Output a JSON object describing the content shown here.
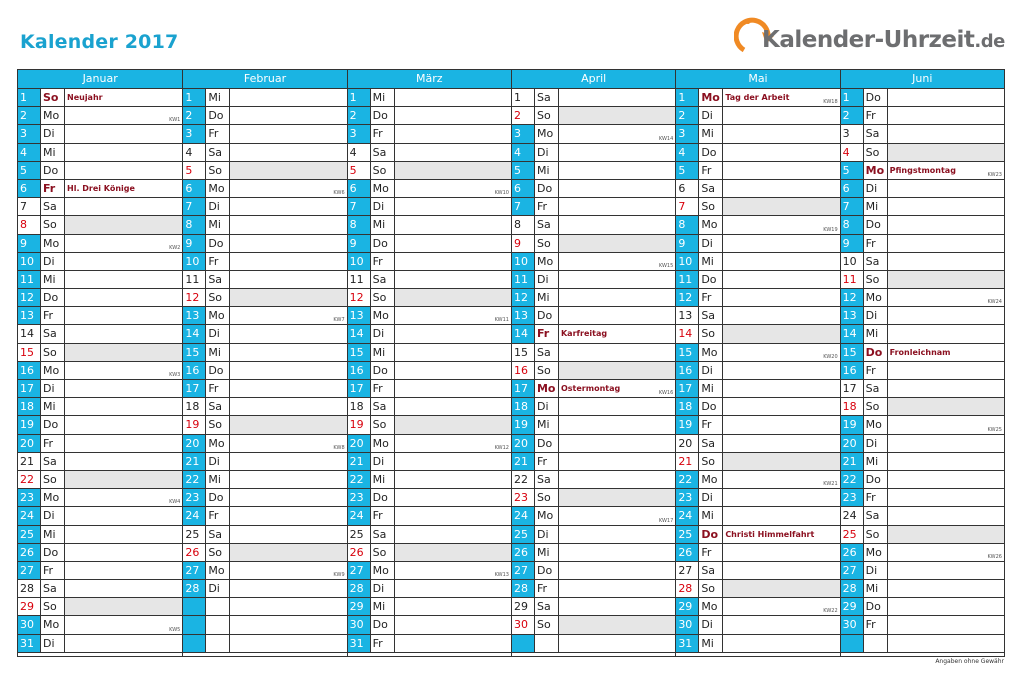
{
  "title": "Kalender 2017",
  "logo": {
    "text": "Kalender-Uhrzeit",
    "suffix": ".de",
    "icon": "clock-arrow-icon"
  },
  "footer": "Angaben ohne Gewähr",
  "colors": {
    "accent": "#1ab4e3",
    "holiday": "#8b1020",
    "sunday": "#d8000c",
    "weekend_bg": "#e6e6e6"
  },
  "months": [
    {
      "name": "Januar",
      "days": [
        {
          "n": "1",
          "d": "So",
          "h": "Neujahr",
          "kw": ""
        },
        {
          "n": "2",
          "d": "Mo",
          "kw": "KW1"
        },
        {
          "n": "3",
          "d": "Di"
        },
        {
          "n": "4",
          "d": "Mi"
        },
        {
          "n": "5",
          "d": "Do"
        },
        {
          "n": "6",
          "d": "Fr",
          "h": "Hl. Drei Könige"
        },
        {
          "n": "7",
          "d": "Sa"
        },
        {
          "n": "8",
          "d": "So"
        },
        {
          "n": "9",
          "d": "Mo",
          "kw": "KW2"
        },
        {
          "n": "10",
          "d": "Di"
        },
        {
          "n": "11",
          "d": "Mi"
        },
        {
          "n": "12",
          "d": "Do"
        },
        {
          "n": "13",
          "d": "Fr"
        },
        {
          "n": "14",
          "d": "Sa"
        },
        {
          "n": "15",
          "d": "So"
        },
        {
          "n": "16",
          "d": "Mo",
          "kw": "KW3"
        },
        {
          "n": "17",
          "d": "Di"
        },
        {
          "n": "18",
          "d": "Mi"
        },
        {
          "n": "19",
          "d": "Do"
        },
        {
          "n": "20",
          "d": "Fr"
        },
        {
          "n": "21",
          "d": "Sa"
        },
        {
          "n": "22",
          "d": "So"
        },
        {
          "n": "23",
          "d": "Mo",
          "kw": "KW4"
        },
        {
          "n": "24",
          "d": "Di"
        },
        {
          "n": "25",
          "d": "Mi"
        },
        {
          "n": "26",
          "d": "Do"
        },
        {
          "n": "27",
          "d": "Fr"
        },
        {
          "n": "28",
          "d": "Sa"
        },
        {
          "n": "29",
          "d": "So"
        },
        {
          "n": "30",
          "d": "Mo",
          "kw": "KW5"
        },
        {
          "n": "31",
          "d": "Di"
        }
      ]
    },
    {
      "name": "Februar",
      "days": [
        {
          "n": "1",
          "d": "Mi"
        },
        {
          "n": "2",
          "d": "Do"
        },
        {
          "n": "3",
          "d": "Fr"
        },
        {
          "n": "4",
          "d": "Sa"
        },
        {
          "n": "5",
          "d": "So"
        },
        {
          "n": "6",
          "d": "Mo",
          "kw": "KW6"
        },
        {
          "n": "7",
          "d": "Di"
        },
        {
          "n": "8",
          "d": "Mi"
        },
        {
          "n": "9",
          "d": "Do"
        },
        {
          "n": "10",
          "d": "Fr"
        },
        {
          "n": "11",
          "d": "Sa"
        },
        {
          "n": "12",
          "d": "So"
        },
        {
          "n": "13",
          "d": "Mo",
          "kw": "KW7"
        },
        {
          "n": "14",
          "d": "Di"
        },
        {
          "n": "15",
          "d": "Mi"
        },
        {
          "n": "16",
          "d": "Do"
        },
        {
          "n": "17",
          "d": "Fr"
        },
        {
          "n": "18",
          "d": "Sa"
        },
        {
          "n": "19",
          "d": "So"
        },
        {
          "n": "20",
          "d": "Mo",
          "kw": "KW8"
        },
        {
          "n": "21",
          "d": "Di"
        },
        {
          "n": "22",
          "d": "Mi"
        },
        {
          "n": "23",
          "d": "Do"
        },
        {
          "n": "24",
          "d": "Fr"
        },
        {
          "n": "25",
          "d": "Sa"
        },
        {
          "n": "26",
          "d": "So"
        },
        {
          "n": "27",
          "d": "Mo",
          "kw": "KW9"
        },
        {
          "n": "28",
          "d": "Di"
        }
      ]
    },
    {
      "name": "März",
      "days": [
        {
          "n": "1",
          "d": "Mi"
        },
        {
          "n": "2",
          "d": "Do"
        },
        {
          "n": "3",
          "d": "Fr"
        },
        {
          "n": "4",
          "d": "Sa"
        },
        {
          "n": "5",
          "d": "So"
        },
        {
          "n": "6",
          "d": "Mo",
          "kw": "KW10"
        },
        {
          "n": "7",
          "d": "Di"
        },
        {
          "n": "8",
          "d": "Mi"
        },
        {
          "n": "9",
          "d": "Do"
        },
        {
          "n": "10",
          "d": "Fr"
        },
        {
          "n": "11",
          "d": "Sa"
        },
        {
          "n": "12",
          "d": "So"
        },
        {
          "n": "13",
          "d": "Mo",
          "kw": "KW11"
        },
        {
          "n": "14",
          "d": "Di"
        },
        {
          "n": "15",
          "d": "Mi"
        },
        {
          "n": "16",
          "d": "Do"
        },
        {
          "n": "17",
          "d": "Fr"
        },
        {
          "n": "18",
          "d": "Sa"
        },
        {
          "n": "19",
          "d": "So"
        },
        {
          "n": "20",
          "d": "Mo",
          "kw": "KW12"
        },
        {
          "n": "21",
          "d": "Di"
        },
        {
          "n": "22",
          "d": "Mi"
        },
        {
          "n": "23",
          "d": "Do"
        },
        {
          "n": "24",
          "d": "Fr"
        },
        {
          "n": "25",
          "d": "Sa"
        },
        {
          "n": "26",
          "d": "So"
        },
        {
          "n": "27",
          "d": "Mo",
          "kw": "KW13"
        },
        {
          "n": "28",
          "d": "Di"
        },
        {
          "n": "29",
          "d": "Mi"
        },
        {
          "n": "30",
          "d": "Do"
        },
        {
          "n": "31",
          "d": "Fr"
        }
      ]
    },
    {
      "name": "April",
      "days": [
        {
          "n": "1",
          "d": "Sa"
        },
        {
          "n": "2",
          "d": "So"
        },
        {
          "n": "3",
          "d": "Mo",
          "kw": "KW14"
        },
        {
          "n": "4",
          "d": "Di"
        },
        {
          "n": "5",
          "d": "Mi"
        },
        {
          "n": "6",
          "d": "Do"
        },
        {
          "n": "7",
          "d": "Fr"
        },
        {
          "n": "8",
          "d": "Sa"
        },
        {
          "n": "9",
          "d": "So"
        },
        {
          "n": "10",
          "d": "Mo",
          "kw": "KW15"
        },
        {
          "n": "11",
          "d": "Di"
        },
        {
          "n": "12",
          "d": "Mi"
        },
        {
          "n": "13",
          "d": "Do"
        },
        {
          "n": "14",
          "d": "Fr",
          "h": "Karfreitag"
        },
        {
          "n": "15",
          "d": "Sa"
        },
        {
          "n": "16",
          "d": "So"
        },
        {
          "n": "17",
          "d": "Mo",
          "h": "Ostermontag",
          "kw": "KW16"
        },
        {
          "n": "18",
          "d": "Di"
        },
        {
          "n": "19",
          "d": "Mi"
        },
        {
          "n": "20",
          "d": "Do"
        },
        {
          "n": "21",
          "d": "Fr"
        },
        {
          "n": "22",
          "d": "Sa"
        },
        {
          "n": "23",
          "d": "So"
        },
        {
          "n": "24",
          "d": "Mo",
          "kw": "KW17"
        },
        {
          "n": "25",
          "d": "Di"
        },
        {
          "n": "26",
          "d": "Mi"
        },
        {
          "n": "27",
          "d": "Do"
        },
        {
          "n": "28",
          "d": "Fr"
        },
        {
          "n": "29",
          "d": "Sa"
        },
        {
          "n": "30",
          "d": "So"
        }
      ]
    },
    {
      "name": "Mai",
      "days": [
        {
          "n": "1",
          "d": "Mo",
          "h": "Tag der Arbeit",
          "kw": "KW18"
        },
        {
          "n": "2",
          "d": "Di"
        },
        {
          "n": "3",
          "d": "Mi"
        },
        {
          "n": "4",
          "d": "Do"
        },
        {
          "n": "5",
          "d": "Fr"
        },
        {
          "n": "6",
          "d": "Sa"
        },
        {
          "n": "7",
          "d": "So"
        },
        {
          "n": "8",
          "d": "Mo",
          "kw": "KW19"
        },
        {
          "n": "9",
          "d": "Di"
        },
        {
          "n": "10",
          "d": "Mi"
        },
        {
          "n": "11",
          "d": "Do"
        },
        {
          "n": "12",
          "d": "Fr"
        },
        {
          "n": "13",
          "d": "Sa"
        },
        {
          "n": "14",
          "d": "So"
        },
        {
          "n": "15",
          "d": "Mo",
          "kw": "KW20"
        },
        {
          "n": "16",
          "d": "Di"
        },
        {
          "n": "17",
          "d": "Mi"
        },
        {
          "n": "18",
          "d": "Do"
        },
        {
          "n": "19",
          "d": "Fr"
        },
        {
          "n": "20",
          "d": "Sa"
        },
        {
          "n": "21",
          "d": "So"
        },
        {
          "n": "22",
          "d": "Mo",
          "kw": "KW21"
        },
        {
          "n": "23",
          "d": "Di"
        },
        {
          "n": "24",
          "d": "Mi"
        },
        {
          "n": "25",
          "d": "Do",
          "h": "Christi Himmelfahrt"
        },
        {
          "n": "26",
          "d": "Fr"
        },
        {
          "n": "27",
          "d": "Sa"
        },
        {
          "n": "28",
          "d": "So"
        },
        {
          "n": "29",
          "d": "Mo",
          "kw": "KW22"
        },
        {
          "n": "30",
          "d": "Di"
        },
        {
          "n": "31",
          "d": "Mi"
        }
      ]
    },
    {
      "name": "Juni",
      "days": [
        {
          "n": "1",
          "d": "Do"
        },
        {
          "n": "2",
          "d": "Fr"
        },
        {
          "n": "3",
          "d": "Sa"
        },
        {
          "n": "4",
          "d": "So"
        },
        {
          "n": "5",
          "d": "Mo",
          "h": "Pfingstmontag",
          "kw": "KW23"
        },
        {
          "n": "6",
          "d": "Di"
        },
        {
          "n": "7",
          "d": "Mi"
        },
        {
          "n": "8",
          "d": "Do"
        },
        {
          "n": "9",
          "d": "Fr"
        },
        {
          "n": "10",
          "d": "Sa"
        },
        {
          "n": "11",
          "d": "So"
        },
        {
          "n": "12",
          "d": "Mo",
          "kw": "KW24"
        },
        {
          "n": "13",
          "d": "Di"
        },
        {
          "n": "14",
          "d": "Mi"
        },
        {
          "n": "15",
          "d": "Do",
          "h": "Fronleichnam"
        },
        {
          "n": "16",
          "d": "Fr"
        },
        {
          "n": "17",
          "d": "Sa"
        },
        {
          "n": "18",
          "d": "So"
        },
        {
          "n": "19",
          "d": "Mo",
          "kw": "KW25"
        },
        {
          "n": "20",
          "d": "Di"
        },
        {
          "n": "21",
          "d": "Mi"
        },
        {
          "n": "22",
          "d": "Do"
        },
        {
          "n": "23",
          "d": "Fr"
        },
        {
          "n": "24",
          "d": "Sa"
        },
        {
          "n": "25",
          "d": "So"
        },
        {
          "n": "26",
          "d": "Mo",
          "kw": "KW26"
        },
        {
          "n": "27",
          "d": "Di"
        },
        {
          "n": "28",
          "d": "Mi"
        },
        {
          "n": "29",
          "d": "Do"
        },
        {
          "n": "30",
          "d": "Fr"
        }
      ]
    }
  ]
}
